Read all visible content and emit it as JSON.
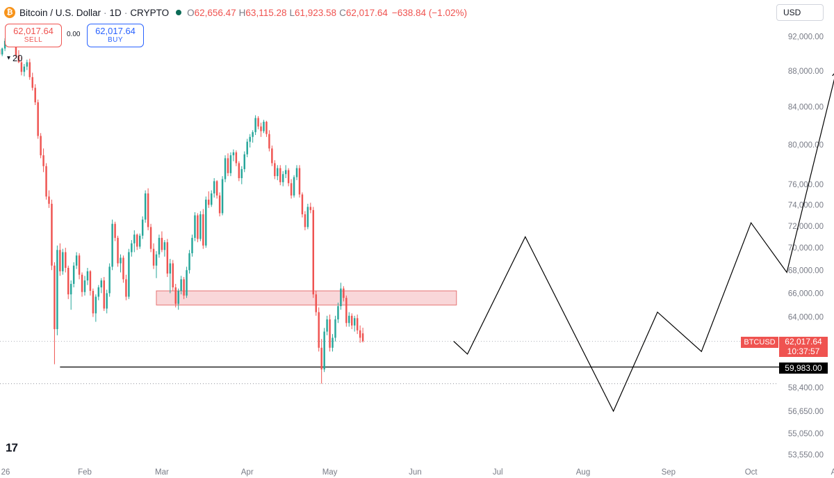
{
  "header": {
    "symbol": "Bitcoin / U.S. Dollar",
    "interval": "1D",
    "exchange": "CRYPTO",
    "open_label": "O",
    "open": "62,656.47",
    "high_label": "H",
    "high": "63,115.28",
    "low_label": "L",
    "low": "61,923.58",
    "close_label": "C",
    "close": "62,017.64",
    "change": "−638.84 (−1.02%)"
  },
  "trade": {
    "sell_price": "62,017.64",
    "sell_label": "SELL",
    "buy_price": "62,017.64",
    "buy_label": "BUY",
    "spread": "0.00"
  },
  "indicator": {
    "ma_length": "20"
  },
  "currency": "USD",
  "price_badge": {
    "symbol": "BTCUSD",
    "price": "62,017.64",
    "countdown": "10:37:57"
  },
  "level_badge": "59,983.00",
  "colors": {
    "up": "#26a69a",
    "down": "#ef5350",
    "zone_fill": "#f7c9cc",
    "zone_border": "#e57373",
    "projection": "#000000"
  },
  "chart_data": {
    "type": "candlestick",
    "y_scale": "log",
    "y_ticks": [
      "92,000.00",
      "88,000.00",
      "84,000.00",
      "80,000.00",
      "76,000.00",
      "74,000.00",
      "72,000.00",
      "70,000.00",
      "68,000.00",
      "66,000.00",
      "64,000.00",
      "58,400.00",
      "56,650.00",
      "55,050.00",
      "53,550.00"
    ],
    "y_tick_values": [
      92000,
      88000,
      84000,
      80000,
      76000,
      74000,
      72000,
      70000,
      68000,
      66000,
      64000,
      58400,
      56650,
      55050,
      53550
    ],
    "x_ticks": [
      "26",
      "Feb",
      "Mar",
      "Apr",
      "May",
      "Jun",
      "Jul",
      "Aug",
      "Sep",
      "Oct",
      "A"
    ],
    "x_tick_days": [
      -1,
      31,
      59,
      90,
      120,
      151,
      181,
      212,
      243,
      273,
      303
    ],
    "candles": [
      [
        90500,
        90800,
        89600,
        89900
      ],
      [
        89900,
        90700,
        89700,
        90600
      ],
      [
        90600,
        91800,
        90300,
        91500
      ],
      [
        91500,
        92000,
        90900,
        91100
      ],
      [
        91100,
        91900,
        90800,
        91700
      ],
      [
        91700,
        93200,
        91500,
        92800
      ],
      [
        92800,
        93100,
        89500,
        89800
      ],
      [
        89800,
        90400,
        88900,
        89000
      ],
      [
        89000,
        89600,
        87500,
        87900
      ],
      [
        87900,
        88800,
        87400,
        88500
      ],
      [
        88500,
        89300,
        88100,
        89000
      ],
      [
        89000,
        89400,
        87000,
        87300
      ],
      [
        87300,
        87800,
        85800,
        86100
      ],
      [
        86100,
        86500,
        84200,
        84500
      ],
      [
        84500,
        84800,
        80600,
        80900
      ],
      [
        80900,
        81200,
        78600,
        78900
      ],
      [
        78900,
        79600,
        77200,
        77800
      ],
      [
        77800,
        78100,
        74500,
        74800
      ],
      [
        74800,
        75400,
        73700,
        74100
      ],
      [
        74100,
        74500,
        68000,
        68400
      ],
      [
        68400,
        68700,
        60200,
        63000
      ],
      [
        63000,
        70200,
        62500,
        69800
      ],
      [
        69800,
        70400,
        67500,
        67900
      ],
      [
        67900,
        69900,
        67600,
        69600
      ],
      [
        69600,
        70000,
        67800,
        68200
      ],
      [
        68200,
        68400,
        65500,
        65900
      ],
      [
        65900,
        67100,
        64600,
        66800
      ],
      [
        66800,
        68700,
        66500,
        68400
      ],
      [
        68400,
        69600,
        68100,
        69300
      ],
      [
        69300,
        69500,
        67200,
        67600
      ],
      [
        67600,
        67800,
        65700,
        66100
      ],
      [
        66100,
        67500,
        65800,
        67100
      ],
      [
        67100,
        68200,
        66700,
        67900
      ],
      [
        67900,
        68000,
        65800,
        66200
      ],
      [
        66200,
        66400,
        64000,
        64300
      ],
      [
        64300,
        65900,
        63600,
        65700
      ],
      [
        65700,
        66700,
        65400,
        66500
      ],
      [
        66500,
        67300,
        66000,
        67100
      ],
      [
        67100,
        67400,
        64500,
        64700
      ],
      [
        64700,
        66300,
        64300,
        66000
      ],
      [
        66000,
        68600,
        65700,
        68300
      ],
      [
        68300,
        72600,
        68000,
        72200
      ],
      [
        72200,
        72400,
        70600,
        70900
      ],
      [
        70900,
        71100,
        68300,
        68600
      ],
      [
        68600,
        69400,
        67800,
        69100
      ],
      [
        69100,
        69300,
        66900,
        67200
      ],
      [
        67200,
        67600,
        65400,
        65700
      ],
      [
        65700,
        69900,
        65500,
        69600
      ],
      [
        69600,
        70700,
        69200,
        70400
      ],
      [
        70400,
        71600,
        69600,
        71200
      ],
      [
        71200,
        71300,
        69800,
        70100
      ],
      [
        70100,
        71300,
        69900,
        71100
      ],
      [
        71100,
        72900,
        70800,
        72600
      ],
      [
        72600,
        75400,
        72300,
        75100
      ],
      [
        75100,
        75600,
        71600,
        71900
      ],
      [
        71900,
        72200,
        69600,
        69900
      ],
      [
        69900,
        70400,
        68100,
        68400
      ],
      [
        68400,
        69700,
        67300,
        69400
      ],
      [
        69400,
        71200,
        69100,
        70900
      ],
      [
        70900,
        71500,
        69600,
        69800
      ],
      [
        69800,
        70700,
        69200,
        70500
      ],
      [
        70500,
        70800,
        67400,
        67700
      ],
      [
        67700,
        69000,
        66000,
        68600
      ],
      [
        68600,
        68900,
        66200,
        66500
      ],
      [
        66500,
        66800,
        64800,
        65100
      ],
      [
        65100,
        66400,
        64600,
        66200
      ],
      [
        66200,
        67500,
        65900,
        67200
      ],
      [
        67200,
        67400,
        65500,
        65800
      ],
      [
        65800,
        68300,
        65600,
        68000
      ],
      [
        68000,
        69800,
        67700,
        69500
      ],
      [
        69500,
        71200,
        69200,
        70900
      ],
      [
        70900,
        73300,
        70600,
        73000
      ],
      [
        73000,
        73200,
        70500,
        70800
      ],
      [
        70800,
        73400,
        70600,
        73100
      ],
      [
        73100,
        73600,
        69900,
        70200
      ],
      [
        70200,
        74800,
        70000,
        74500
      ],
      [
        74500,
        75300,
        73700,
        74000
      ],
      [
        74000,
        75400,
        73800,
        75100
      ],
      [
        75100,
        76600,
        74700,
        76300
      ],
      [
        76300,
        76400,
        74600,
        74900
      ],
      [
        74900,
        75200,
        72900,
        73200
      ],
      [
        73200,
        76800,
        73000,
        76500
      ],
      [
        76500,
        78900,
        76200,
        78600
      ],
      [
        78600,
        79100,
        76800,
        77100
      ],
      [
        77100,
        79200,
        76800,
        78900
      ],
      [
        78900,
        79500,
        78300,
        79200
      ],
      [
        79200,
        79400,
        77800,
        78100
      ],
      [
        78100,
        78300,
        76300,
        76600
      ],
      [
        76600,
        77800,
        76000,
        77500
      ],
      [
        77500,
        79300,
        77200,
        79000
      ],
      [
        79000,
        80600,
        78700,
        80300
      ],
      [
        80300,
        81100,
        79700,
        80800
      ],
      [
        80800,
        81500,
        80200,
        81300
      ],
      [
        81300,
        83100,
        81000,
        82800
      ],
      [
        82800,
        83000,
        81600,
        81900
      ],
      [
        81900,
        82300,
        80800,
        81400
      ],
      [
        81400,
        82600,
        81200,
        82400
      ],
      [
        82400,
        82500,
        80800,
        81100
      ],
      [
        81100,
        81500,
        79300,
        79600
      ],
      [
        79600,
        79900,
        77800,
        78100
      ],
      [
        78100,
        78400,
        76500,
        76800
      ],
      [
        76800,
        77900,
        76400,
        77600
      ],
      [
        77600,
        77900,
        75900,
        76200
      ],
      [
        76200,
        77300,
        75800,
        77000
      ],
      [
        77000,
        77900,
        76600,
        77400
      ],
      [
        77400,
        77600,
        75800,
        76100
      ],
      [
        76100,
        76500,
        74600,
        74900
      ],
      [
        74900,
        76900,
        74700,
        76700
      ],
      [
        76700,
        77900,
        76400,
        77600
      ],
      [
        77600,
        77900,
        74700,
        75000
      ],
      [
        75000,
        75200,
        72800,
        73100
      ],
      [
        73100,
        73400,
        71600,
        71900
      ],
      [
        71900,
        74100,
        71700,
        73800
      ],
      [
        73800,
        74200,
        73200,
        73500
      ],
      [
        73500,
        73800,
        65600,
        65900
      ],
      [
        65900,
        66200,
        64100,
        64400
      ],
      [
        64400,
        64800,
        61200,
        61500
      ],
      [
        61500,
        62200,
        58700,
        59800
      ],
      [
        59800,
        63100,
        59600,
        62800
      ],
      [
        62800,
        64100,
        62500,
        63800
      ],
      [
        63800,
        64200,
        61200,
        61500
      ],
      [
        61500,
        62600,
        61200,
        62300
      ],
      [
        62300,
        64100,
        62000,
        63800
      ],
      [
        63800,
        65200,
        63500,
        64900
      ],
      [
        64900,
        66900,
        64600,
        66400
      ],
      [
        66400,
        66600,
        65300,
        65600
      ],
      [
        65600,
        65800,
        63200,
        63500
      ],
      [
        63500,
        64400,
        63200,
        64100
      ],
      [
        64100,
        64300,
        63000,
        63300
      ],
      [
        63300,
        64100,
        62800,
        63900
      ],
      [
        63900,
        64200,
        62600,
        62900
      ],
      [
        62900,
        63300,
        61900,
        62300
      ],
      [
        62656.47,
        63115.28,
        61923.58,
        62017.64
      ]
    ],
    "first_candle_day": 0,
    "resistance_zone": {
      "low": 65000,
      "high": 66200,
      "from_day": 57,
      "to_day": 166
    },
    "horizontal_level": 59983,
    "current_price": 62017.64,
    "projection_path": [
      [
        165,
        62017.64
      ],
      [
        170,
        61000
      ],
      [
        191,
        71000
      ],
      [
        223,
        56650
      ],
      [
        239,
        64400
      ],
      [
        255,
        61200
      ],
      [
        273,
        72300
      ],
      [
        286,
        67800
      ],
      [
        304,
        88000
      ]
    ]
  }
}
